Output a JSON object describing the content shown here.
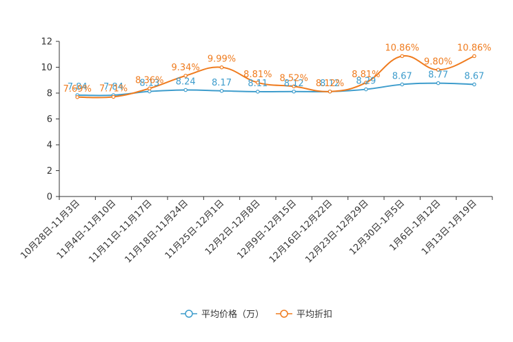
{
  "chart_data": {
    "type": "line",
    "categories": [
      "10月28日-11月3日",
      "11月4日-11月10日",
      "11月11日-11月17日",
      "11月18日-11月24日",
      "11月25日-12月1日",
      "12月2日-12月8日",
      "12月9日-12月15日",
      "12月16日-12月22日",
      "12月23日-12月29日",
      "12月30日-1月5日",
      "1月6日-1月12日",
      "1月13日-1月19日"
    ],
    "ylim": [
      0,
      12
    ],
    "yticks": [
      0,
      2,
      4,
      6,
      8,
      10,
      12
    ],
    "ytick_labels": [
      "0",
      "2",
      "4",
      "6",
      "8",
      "10",
      "12"
    ],
    "series": [
      {
        "name": "平均价格（万）",
        "color": "#3d9ccc",
        "values": [
          7.84,
          7.84,
          8.13,
          8.24,
          8.17,
          8.11,
          8.12,
          8.12,
          8.29,
          8.67,
          8.77,
          8.67
        ],
        "labels": [
          "7.84",
          "7.84",
          "8.13",
          "8.24",
          "8.17",
          "8.11",
          "8.12",
          "8.12",
          "8.29",
          "8.67",
          "8.77",
          "8.67"
        ]
      },
      {
        "name": "平均折扣",
        "color": "#ef7b1e",
        "values": [
          7.69,
          7.71,
          8.36,
          9.34,
          9.99,
          8.81,
          8.52,
          8.12,
          8.81,
          10.86,
          9.8,
          10.86
        ],
        "labels": [
          "7.69%",
          "7.71%",
          "8.36%",
          "9.34%",
          "9.99%",
          "8.81%",
          "8.52%",
          "8.12%",
          "8.81%",
          "10.86%",
          "9.80%",
          "10.86%"
        ]
      }
    ],
    "legend_position": "bottom-center"
  }
}
